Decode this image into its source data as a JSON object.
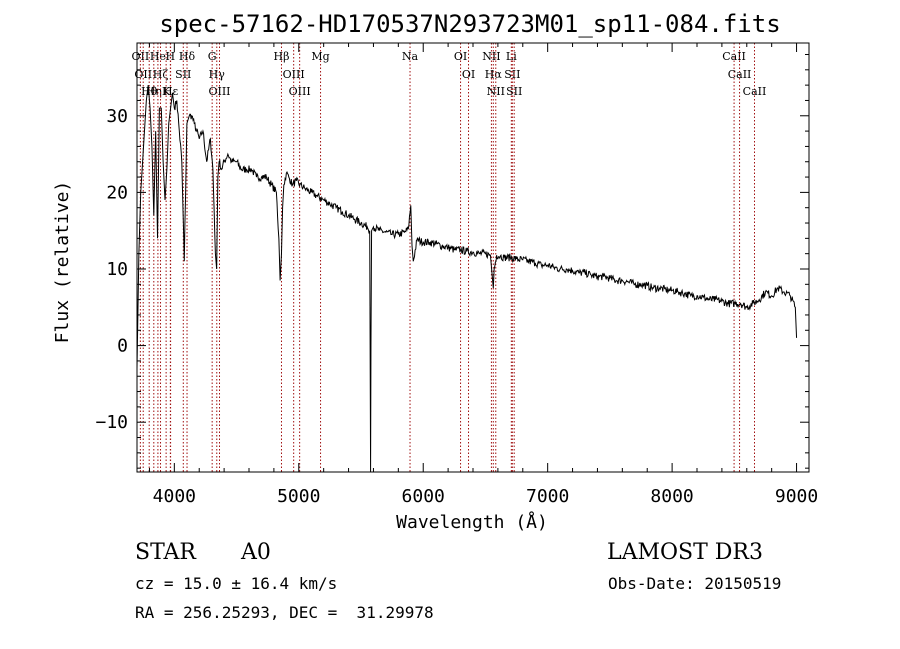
{
  "chart_data": {
    "type": "line",
    "title": "spec-57162-HD170537N293723M01_sp11-084.fits",
    "xlabel": "Wavelength (Å)",
    "ylabel": "Flux (relative)",
    "xlim": [
      3700,
      9100
    ],
    "ylim": [
      -16.5,
      39.5
    ],
    "x_ticks": [
      4000,
      5000,
      6000,
      7000,
      8000,
      9000
    ],
    "x_tick_labels": [
      "4000",
      "5000",
      "6000",
      "7000",
      "8000",
      "9000"
    ],
    "y_ticks": [
      -10,
      0,
      10,
      20,
      30
    ],
    "y_tick_labels": [
      "−10",
      "0",
      "10",
      "20",
      "30"
    ],
    "x_minor_step": 200,
    "y_minor_step": 2,
    "line_color": "#000000",
    "marker_color": "#a01010",
    "series": [
      {
        "name": "flux",
        "x": [
          3700,
          3715,
          3730,
          3745,
          3760,
          3775,
          3790,
          3805,
          3820,
          3835,
          3850,
          3865,
          3880,
          3895,
          3910,
          3925,
          3940,
          3955,
          3970,
          3985,
          4000,
          4020,
          4040,
          4060,
          4080,
          4101,
          4120,
          4140,
          4160,
          4180,
          4200,
          4230,
          4260,
          4290,
          4310,
          4330,
          4340,
          4350,
          4360,
          4380,
          4400,
          4430,
          4460,
          4500,
          4540,
          4580,
          4620,
          4660,
          4700,
          4740,
          4780,
          4820,
          4840,
          4850,
          4861,
          4870,
          4880,
          4900,
          4920,
          4950,
          4980,
          5010,
          5050,
          5100,
          5150,
          5200,
          5250,
          5300,
          5350,
          5400,
          5450,
          5500,
          5550,
          5570,
          5577,
          5580,
          5585,
          5600,
          5650,
          5700,
          5750,
          5800,
          5850,
          5880,
          5900,
          5910,
          5920,
          5950,
          6000,
          6050,
          6100,
          6150,
          6200,
          6250,
          6300,
          6350,
          6400,
          6450,
          6500,
          6540,
          6555,
          6563,
          6570,
          6590,
          6620,
          6650,
          6700,
          6750,
          6800,
          6850,
          6900,
          6950,
          7000,
          7050,
          7100,
          7150,
          7200,
          7250,
          7300,
          7350,
          7400,
          7450,
          7500,
          7550,
          7600,
          7650,
          7700,
          7750,
          7800,
          7850,
          7900,
          7950,
          8000,
          8050,
          8100,
          8150,
          8200,
          8250,
          8300,
          8350,
          8400,
          8450,
          8500,
          8550,
          8600,
          8650,
          8700,
          8750,
          8800,
          8850,
          8900,
          8950,
          8990,
          9000
        ],
        "values": [
          -3,
          12,
          20,
          24,
          28,
          32,
          34,
          31,
          26,
          17,
          28,
          14,
          31,
          31,
          24,
          19,
          23,
          29,
          31,
          33,
          31,
          32,
          28,
          24,
          11,
          29,
          30,
          30,
          29,
          28,
          27,
          28,
          24,
          27,
          23,
          12,
          10,
          22,
          24,
          23,
          24,
          25,
          24,
          24,
          23,
          23,
          23,
          22,
          22,
          22,
          21,
          20,
          14,
          8.5,
          12,
          18,
          21,
          22.5,
          22,
          21,
          21.5,
          21,
          20.5,
          20,
          19.5,
          19,
          18.5,
          18,
          17.5,
          17,
          16.5,
          16,
          15.5,
          15,
          -16.5,
          0,
          15,
          15.5,
          15,
          14.8,
          14.5,
          14.5,
          14.8,
          15.2,
          18.3,
          13,
          11,
          13.8,
          13.5,
          13.5,
          13.3,
          13,
          12.8,
          12.5,
          12.5,
          12.3,
          12.2,
          12,
          12,
          11.8,
          9,
          7.5,
          10,
          11.8,
          11.7,
          11.5,
          11.5,
          11.3,
          11.2,
          11,
          10.8,
          10.5,
          10.5,
          10.2,
          10,
          10,
          9.8,
          9.5,
          9.5,
          9.2,
          9,
          9,
          8.8,
          8.5,
          8.5,
          8.3,
          8,
          8,
          7.8,
          7.5,
          7.5,
          7.3,
          7.2,
          7,
          6.8,
          6.5,
          6.5,
          6.3,
          6,
          6,
          5.8,
          5.5,
          5.5,
          5.5,
          5,
          5.5,
          6,
          7,
          6.5,
          7.5,
          7,
          6.5,
          5,
          1
        ]
      }
    ],
    "line_markers": [
      {
        "x": 3727,
        "label": "OII"
      },
      {
        "x": 3750,
        "label": "OII"
      },
      {
        "x": 3798,
        "label": "Hθ"
      },
      {
        "x": 3835,
        "label": "Hη"
      },
      {
        "x": 3868,
        "label": "He"
      },
      {
        "x": 3889,
        "label": "Hζ"
      },
      {
        "x": 3934,
        "label": "K"
      },
      {
        "x": 3968,
        "label": "H"
      },
      {
        "x": 3970,
        "label": "Hε"
      },
      {
        "x": 4072,
        "label": "SII"
      },
      {
        "x": 4102,
        "label": "Hδ"
      },
      {
        "x": 4304,
        "label": "G"
      },
      {
        "x": 4341,
        "label": "Hγ"
      },
      {
        "x": 4363,
        "label": "OIII"
      },
      {
        "x": 4861,
        "label": "Hβ"
      },
      {
        "x": 4959,
        "label": "OIII"
      },
      {
        "x": 5007,
        "label": "OIII"
      },
      {
        "x": 5175,
        "label": "Mg"
      },
      {
        "x": 5894,
        "label": "Na"
      },
      {
        "x": 6300,
        "label": "OI"
      },
      {
        "x": 6364,
        "label": "OI"
      },
      {
        "x": 6548,
        "label": "NII"
      },
      {
        "x": 6563,
        "label": "Hα"
      },
      {
        "x": 6583,
        "label": "NII"
      },
      {
        "x": 6708,
        "label": "Li"
      },
      {
        "x": 6716,
        "label": "SII"
      },
      {
        "x": 6731,
        "label": "SII"
      },
      {
        "x": 8498,
        "label": "CaII"
      },
      {
        "x": 8542,
        "label": "CaII"
      },
      {
        "x": 8662,
        "label": "CaII"
      }
    ]
  },
  "info": {
    "object_class": "STAR",
    "subclass": "A0",
    "survey": "LAMOST DR3",
    "redshift_line": "cz = 15.0 ± 16.4 km/s",
    "obs_date_line": "Obs-Date: 20150519",
    "coords_line": "RA = 256.25293, DEC =  31.29978"
  }
}
